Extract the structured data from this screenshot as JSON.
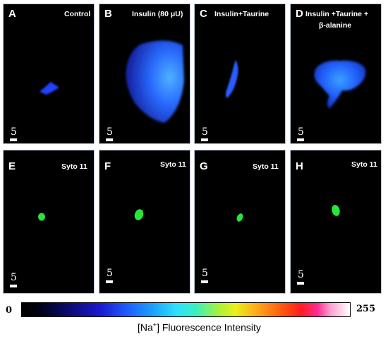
{
  "panels": [
    {
      "letter": "A",
      "label": "Control"
    },
    {
      "letter": "B",
      "label": "Insulin (80 μU)"
    },
    {
      "letter": "C",
      "label": "Insulin+Taurine"
    },
    {
      "letter": "D",
      "label": "Insulin +Taurine +",
      "label2": "β-alanine"
    },
    {
      "letter": "E",
      "label": "Syto 11"
    },
    {
      "letter": "F",
      "label": "Syto 11"
    },
    {
      "letter": "G",
      "label": "Syto 11"
    },
    {
      "letter": "H",
      "label": "Syto 11"
    }
  ],
  "scale_bar_label": "5",
  "colorbar": {
    "min_label": "0",
    "max_label": "255",
    "title_prefix": "[Na",
    "title_sup": "+",
    "title_suffix": "] Fluorescence Intensity"
  }
}
